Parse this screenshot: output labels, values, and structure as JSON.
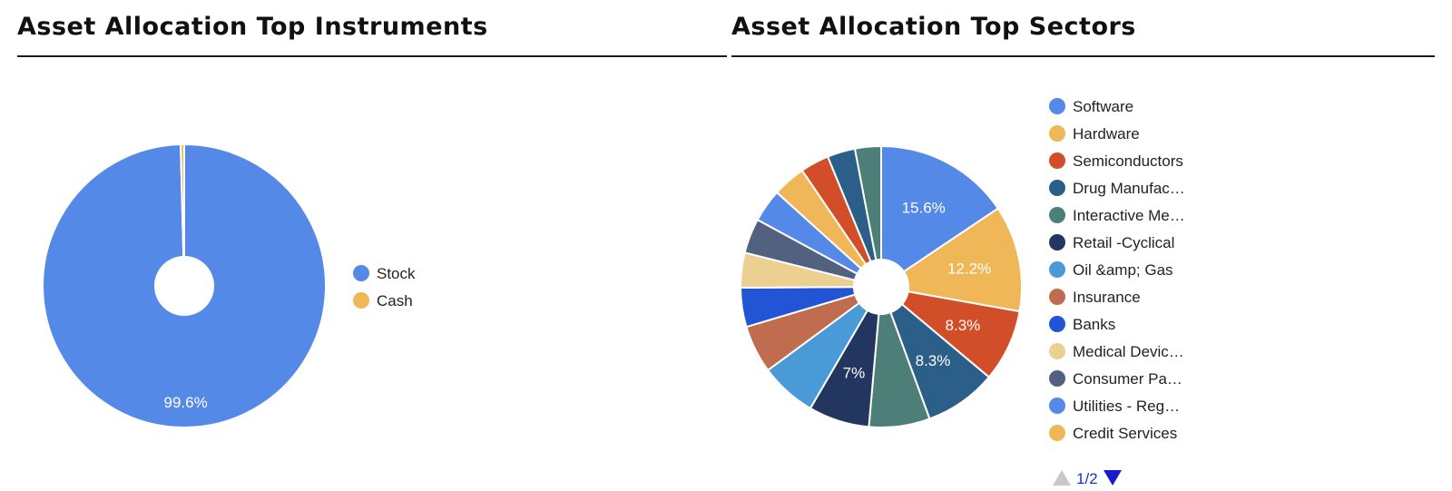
{
  "left_panel": {
    "title": "Asset Allocation Top Instruments"
  },
  "right_panel": {
    "title": "Asset Allocation Top Sectors"
  },
  "pager": {
    "label": "1/2"
  },
  "chart_data": [
    {
      "type": "pie",
      "donut": true,
      "title": "Asset Allocation Top Instruments",
      "slices": [
        {
          "label": "Stock",
          "value": 99.6,
          "color": "#5589e8",
          "data_label": "99.6%"
        },
        {
          "label": "Cash",
          "value": 0.4,
          "color": "#efb758",
          "data_label": ""
        }
      ],
      "legend": {
        "placement": "right",
        "entries": [
          "Stock",
          "Cash"
        ]
      }
    },
    {
      "type": "pie",
      "donut": true,
      "title": "Asset Allocation Top Sectors",
      "slices": [
        {
          "label": "Software",
          "value": 15.6,
          "color": "#5589e8",
          "data_label": "15.6%"
        },
        {
          "label": "Hardware",
          "value": 12.2,
          "color": "#efb758",
          "data_label": "12.2%"
        },
        {
          "label": "Semiconductors",
          "value": 8.3,
          "color": "#d24e28",
          "data_label": "8.3%"
        },
        {
          "label": "Drug Manufac…",
          "value": 8.3,
          "color": "#2b5f89",
          "data_label": "8.3%"
        },
        {
          "label": "Interactive Me…",
          "value": 7.0,
          "color": "#4d7f78",
          "data_label": ""
        },
        {
          "label": "Retail -Cyclical",
          "value": 7.0,
          "color": "#22365f",
          "data_label": "7%"
        },
        {
          "label": "Oil &amp; Gas",
          "value": 6.5,
          "color": "#4a9ad8",
          "data_label": ""
        },
        {
          "label": "Insurance",
          "value": 5.5,
          "color": "#c06c4f",
          "data_label": ""
        },
        {
          "label": "Banks",
          "value": 4.5,
          "color": "#2155d6",
          "data_label": ""
        },
        {
          "label": "Medical Devic…",
          "value": 4.0,
          "color": "#ecd091",
          "data_label": ""
        },
        {
          "label": "Consumer Pa…",
          "value": 4.0,
          "color": "#536180",
          "data_label": ""
        },
        {
          "label": "Utilities - Reg…",
          "value": 3.8,
          "color": "#5589e8",
          "data_label": ""
        },
        {
          "label": "Credit Services",
          "value": 3.8,
          "color": "#efb758",
          "data_label": ""
        },
        {
          "label": "",
          "value": 3.3,
          "color": "#d24e28",
          "data_label": ""
        },
        {
          "label": "",
          "value": 3.2,
          "color": "#2b5f89",
          "data_label": ""
        },
        {
          "label": "",
          "value": 3.0,
          "color": "#4d7f78",
          "data_label": ""
        }
      ],
      "legend": {
        "placement": "right",
        "entries": [
          "Software",
          "Hardware",
          "Semiconductors",
          "Drug Manufac…",
          "Interactive Me…",
          "Retail -Cyclical",
          "Oil &amp; Gas",
          "Insurance",
          "Banks",
          "Medical Devic…",
          "Consumer Pa…",
          "Utilities - Reg…",
          "Credit Services"
        ]
      }
    }
  ]
}
